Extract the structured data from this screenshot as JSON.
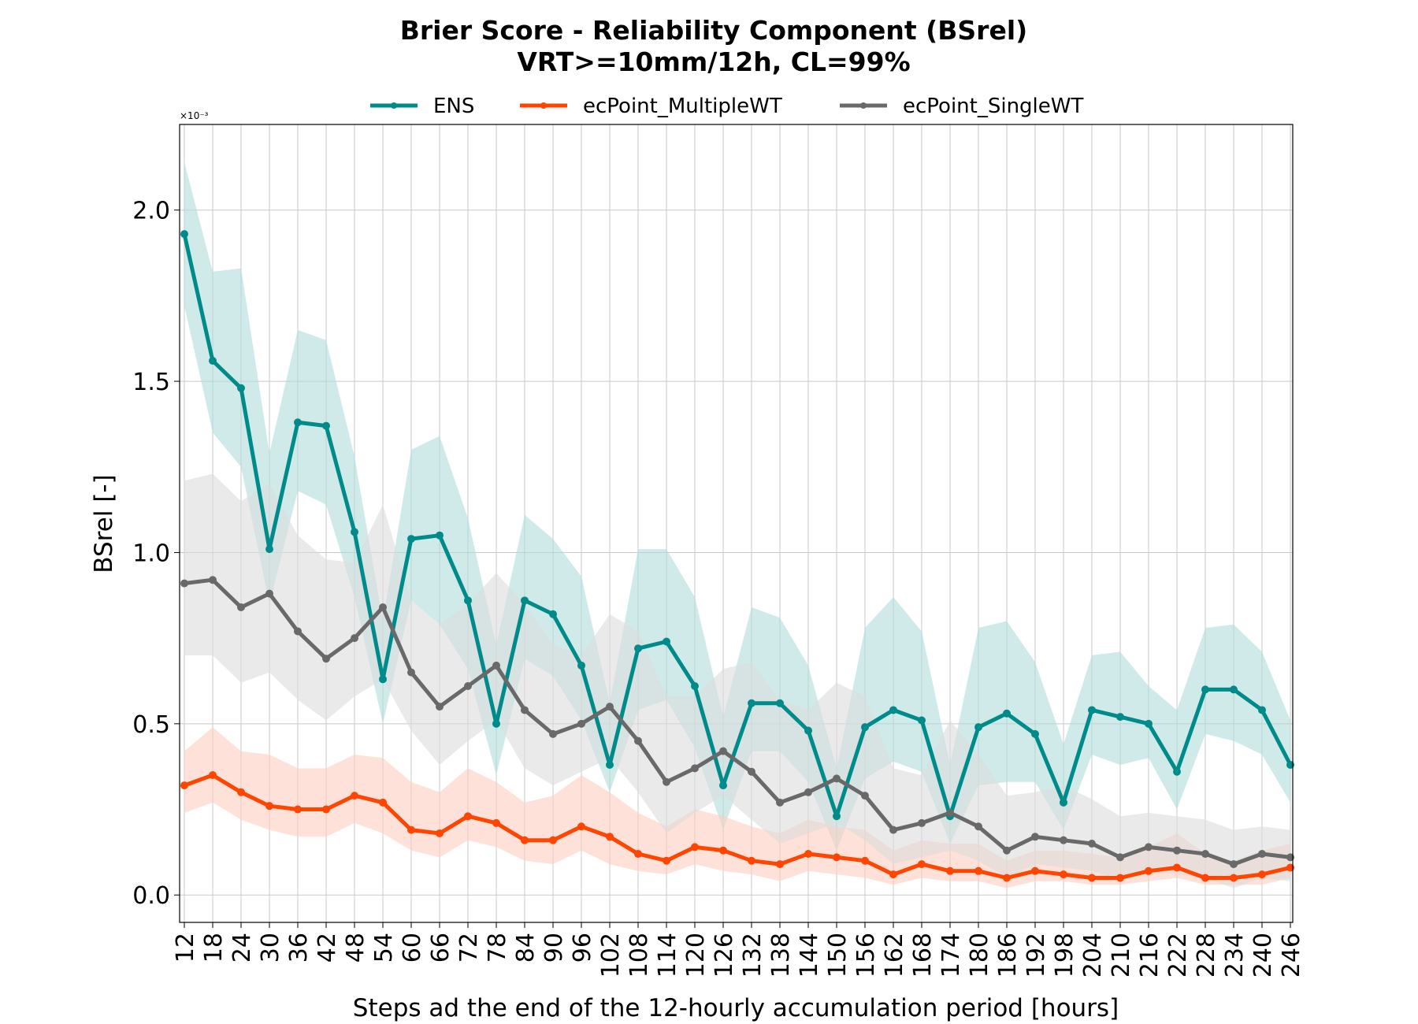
{
  "chart_data": {
    "type": "line",
    "title": "Brier Score - Reliability Component (BSrel)",
    "subtitle": "VRT>=10mm/12h, CL=99%",
    "xlabel": "Steps ad the end of the 12-hourly accumulation period [hours]",
    "ylabel": "BSrel [-]",
    "y_scale_multiplier": "×10⁻³",
    "ylim": [
      -0.08,
      2.25
    ],
    "yticks": [
      "0.0",
      "0.5",
      "1.0",
      "1.5",
      "2.0"
    ],
    "grid": true,
    "legend_position": "top-center",
    "x": [
      12,
      18,
      24,
      30,
      36,
      42,
      48,
      54,
      60,
      66,
      72,
      78,
      84,
      90,
      96,
      102,
      108,
      114,
      120,
      126,
      132,
      138,
      144,
      150,
      156,
      162,
      168,
      174,
      180,
      186,
      192,
      198,
      204,
      210,
      216,
      222,
      228,
      234,
      240,
      246
    ],
    "series": [
      {
        "name": "ENS",
        "color": "#008b8b",
        "band_color": "#b0dcdc",
        "values": [
          1.93,
          1.56,
          1.48,
          1.01,
          1.38,
          1.37,
          1.06,
          0.63,
          1.04,
          1.05,
          0.86,
          0.5,
          0.86,
          0.82,
          0.67,
          0.38,
          0.72,
          0.74,
          0.61,
          0.32,
          0.56,
          0.56,
          0.48,
          0.23,
          0.49,
          0.54,
          0.51,
          0.23,
          0.49,
          0.53,
          0.47,
          0.27,
          0.54,
          0.52,
          0.5,
          0.36,
          0.6,
          0.6,
          0.54,
          0.38
        ],
        "lower": [
          1.72,
          1.35,
          1.25,
          0.85,
          1.18,
          1.14,
          0.87,
          0.5,
          0.86,
          0.79,
          0.66,
          0.35,
          0.69,
          0.64,
          0.51,
          0.3,
          0.54,
          0.57,
          0.43,
          0.19,
          0.42,
          0.42,
          0.33,
          0.13,
          0.34,
          0.39,
          0.36,
          0.15,
          0.32,
          0.33,
          0.33,
          0.19,
          0.41,
          0.38,
          0.4,
          0.25,
          0.47,
          0.45,
          0.41,
          0.27
        ],
        "upper": [
          2.14,
          1.82,
          1.83,
          1.29,
          1.65,
          1.62,
          1.28,
          0.8,
          1.3,
          1.34,
          1.1,
          0.73,
          1.11,
          1.04,
          0.93,
          0.56,
          1.01,
          1.01,
          0.87,
          0.52,
          0.84,
          0.81,
          0.67,
          0.37,
          0.78,
          0.87,
          0.77,
          0.38,
          0.78,
          0.8,
          0.68,
          0.44,
          0.7,
          0.71,
          0.61,
          0.54,
          0.78,
          0.79,
          0.71,
          0.51
        ]
      },
      {
        "name": "ecPoint_MultipleWT",
        "color": "#ff4500",
        "band_color": "#fdcfc0",
        "values": [
          0.32,
          0.35,
          0.3,
          0.26,
          0.25,
          0.25,
          0.29,
          0.27,
          0.19,
          0.18,
          0.23,
          0.21,
          0.16,
          0.16,
          0.2,
          0.17,
          0.12,
          0.1,
          0.14,
          0.13,
          0.1,
          0.09,
          0.12,
          0.11,
          0.1,
          0.06,
          0.09,
          0.07,
          0.07,
          0.05,
          0.07,
          0.06,
          0.05,
          0.05,
          0.07,
          0.08,
          0.05,
          0.05,
          0.06,
          0.08
        ],
        "lower": [
          0.24,
          0.27,
          0.22,
          0.19,
          0.17,
          0.17,
          0.21,
          0.18,
          0.13,
          0.11,
          0.16,
          0.14,
          0.1,
          0.09,
          0.13,
          0.09,
          0.07,
          0.06,
          0.09,
          0.07,
          0.06,
          0.04,
          0.07,
          0.06,
          0.05,
          0.03,
          0.05,
          0.04,
          0.04,
          0.02,
          0.04,
          0.04,
          0.03,
          0.03,
          0.04,
          0.05,
          0.03,
          0.03,
          0.03,
          0.05
        ],
        "upper": [
          0.42,
          0.49,
          0.42,
          0.41,
          0.37,
          0.37,
          0.41,
          0.4,
          0.33,
          0.3,
          0.37,
          0.33,
          0.27,
          0.29,
          0.35,
          0.3,
          0.24,
          0.2,
          0.25,
          0.23,
          0.2,
          0.18,
          0.22,
          0.2,
          0.19,
          0.13,
          0.16,
          0.15,
          0.15,
          0.1,
          0.13,
          0.13,
          0.12,
          0.11,
          0.14,
          0.18,
          0.12,
          0.1,
          0.13,
          0.15
        ]
      },
      {
        "name": "ecPoint_SingleWT",
        "color": "#696969",
        "band_color": "#dcdcdc",
        "values": [
          0.91,
          0.92,
          0.84,
          0.88,
          0.77,
          0.69,
          0.75,
          0.84,
          0.65,
          0.55,
          0.61,
          0.67,
          0.54,
          0.47,
          0.5,
          0.55,
          0.45,
          0.33,
          0.37,
          0.42,
          0.36,
          0.27,
          0.3,
          0.34,
          0.29,
          0.19,
          0.21,
          0.24,
          0.2,
          0.13,
          0.17,
          0.16,
          0.15,
          0.11,
          0.14,
          0.13,
          0.12,
          0.09,
          0.12,
          0.11
        ],
        "lower": [
          0.7,
          0.7,
          0.62,
          0.65,
          0.57,
          0.51,
          0.58,
          0.63,
          0.48,
          0.38,
          0.45,
          0.51,
          0.37,
          0.32,
          0.36,
          0.4,
          0.3,
          0.18,
          0.24,
          0.29,
          0.22,
          0.15,
          0.18,
          0.21,
          0.16,
          0.09,
          0.11,
          0.13,
          0.1,
          0.05,
          0.09,
          0.08,
          0.07,
          0.04,
          0.07,
          0.06,
          0.05,
          0.02,
          0.05,
          0.04
        ],
        "upper": [
          1.21,
          1.23,
          1.15,
          1.2,
          1.05,
          0.98,
          0.97,
          1.14,
          0.86,
          0.79,
          0.85,
          0.94,
          0.85,
          0.73,
          0.7,
          0.82,
          0.77,
          0.58,
          0.58,
          0.66,
          0.68,
          0.57,
          0.54,
          0.62,
          0.58,
          0.37,
          0.35,
          0.51,
          0.41,
          0.29,
          0.3,
          0.32,
          0.28,
          0.23,
          0.24,
          0.23,
          0.22,
          0.19,
          0.2,
          0.19
        ]
      }
    ]
  }
}
